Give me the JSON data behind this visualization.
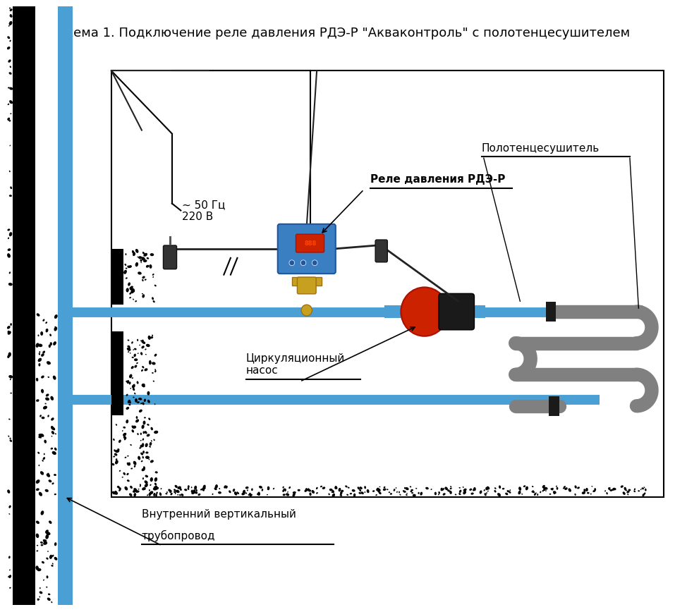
{
  "title": "Схема 1. Подключение реле давления РДЭ-Р \"Акваконтроль\" с полотенцесушителем",
  "bg_color": "#ffffff",
  "border_color": "#000000",
  "pipe_color": "#4a9fd4",
  "wall_color": "#1a1a1a",
  "soil_color": "#1a1a1a",
  "towel_rail_color": "#808080",
  "label_relay": "Реле давления РДЭ-Р",
  "label_pump": "Циркуляционный\nнасос",
  "label_towel": "Полотенцесушитель",
  "label_pipe": "Внутренний вертикальный\nтрубопровод",
  "label_power": "~ 50 Гц\n220 В",
  "title_fontsize": 13,
  "label_fontsize": 11
}
